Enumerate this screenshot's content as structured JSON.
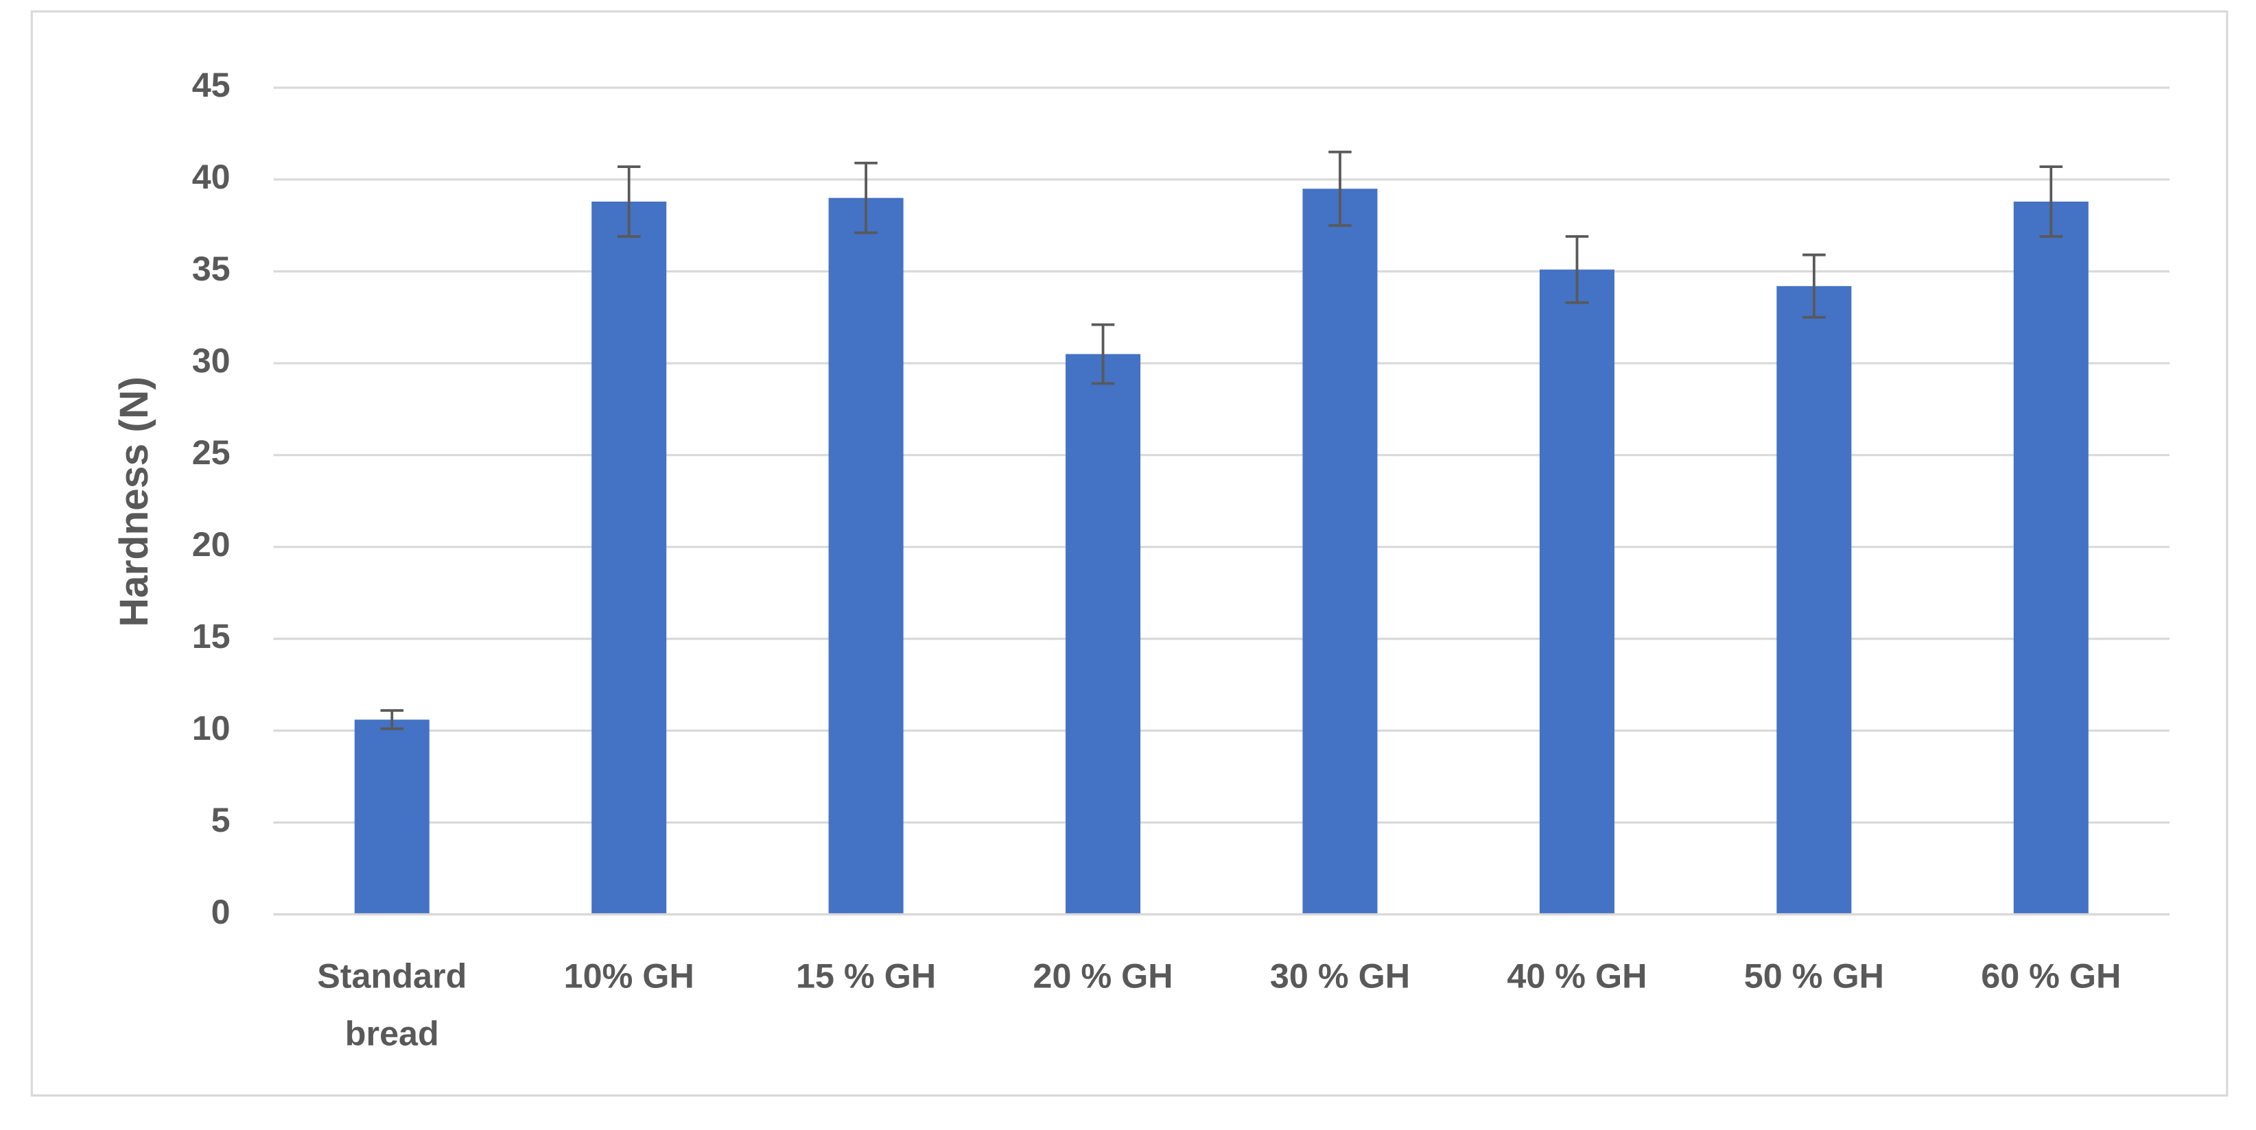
{
  "chart_data": {
    "type": "bar",
    "y_label": "Hardness (N)",
    "categories": [
      "Standard\nbread",
      "10% GH",
      "15 % GH",
      "20 % GH",
      "30 % GH",
      "40 % GH",
      "50 % GH",
      "60 % GH"
    ],
    "values": [
      10.6,
      38.8,
      39.0,
      30.5,
      39.5,
      35.1,
      34.2,
      38.8
    ],
    "errors": [
      0.5,
      1.9,
      1.9,
      1.6,
      2.0,
      1.8,
      1.7,
      1.9
    ],
    "color": "#4472c4",
    "ylim": [
      0,
      45
    ],
    "yticks": [
      0,
      5,
      10,
      15,
      20,
      25,
      30,
      35,
      40,
      45
    ],
    "grid": true
  }
}
